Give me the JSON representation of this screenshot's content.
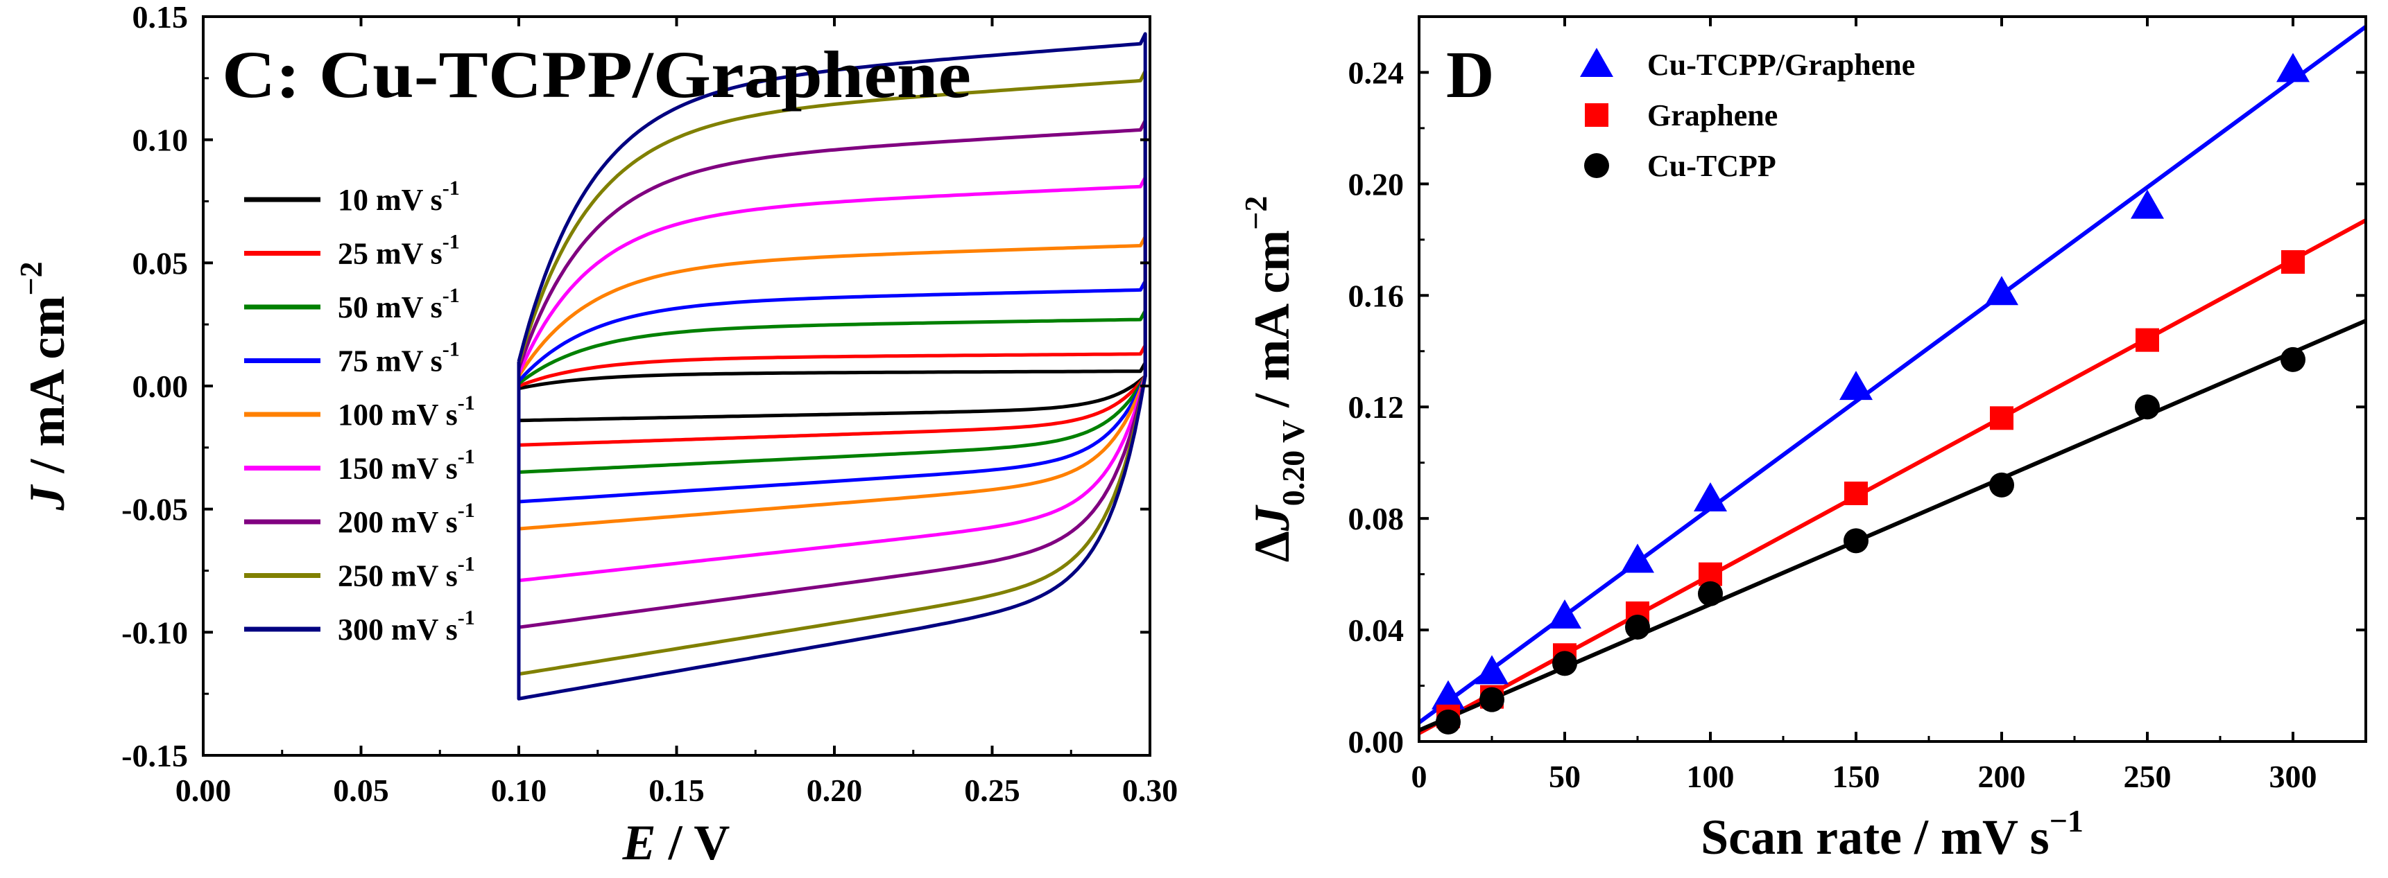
{
  "figure": "Cyclic voltammograms and capacitive current vs scan rate",
  "chart_data": [
    {
      "id": "C",
      "type": "line",
      "title": "C: Cu-TCPP/Graphene",
      "xlabel_italic": "E",
      "xlabel_rest": " / V",
      "ylabel_italic": "J",
      "ylabel_rest": " / mA cm",
      "ylabel_sup": "−2",
      "xlim": [
        0.0,
        0.3
      ],
      "ylim": [
        -0.15,
        0.15
      ],
      "xticks": [
        0.0,
        0.05,
        0.1,
        0.15,
        0.2,
        0.25,
        0.3
      ],
      "xtick_labels": [
        "0.00",
        "0.05",
        "0.10",
        "0.15",
        "0.20",
        "0.25",
        "0.30"
      ],
      "yticks": [
        0.15,
        0.1,
        0.05,
        0.0,
        -0.05,
        -0.1,
        -0.15
      ],
      "ytick_labels": [
        "0.15",
        "0.10",
        "0.05",
        "0.00",
        "-0.05",
        "-0.10",
        "-0.15"
      ],
      "legend_position": "left-middle",
      "unit_text": " mV s",
      "unit_sup": "-1",
      "series": [
        {
          "name": "10 mV s-1",
          "scan_rate": 10,
          "color": "#000000",
          "anodic_start": -0.001,
          "anodic_end": 0.006,
          "cathodic_end": -0.014
        },
        {
          "name": "25 mV s-1",
          "scan_rate": 25,
          "color": "#ff0000",
          "anodic_start": 0.0,
          "anodic_end": 0.013,
          "cathodic_end": -0.024
        },
        {
          "name": "50 mV s-1",
          "scan_rate": 50,
          "color": "#008000",
          "anodic_start": 0.001,
          "anodic_end": 0.027,
          "cathodic_end": -0.035
        },
        {
          "name": "75 mV s-1",
          "scan_rate": 75,
          "color": "#0000ff",
          "anodic_start": 0.002,
          "anodic_end": 0.039,
          "cathodic_end": -0.047
        },
        {
          "name": "100 mV s-1",
          "scan_rate": 100,
          "color": "#ff8000",
          "anodic_start": 0.004,
          "anodic_end": 0.057,
          "cathodic_end": -0.058
        },
        {
          "name": "150 mV s-1",
          "scan_rate": 150,
          "color": "#ff00ff",
          "anodic_start": 0.005,
          "anodic_end": 0.081,
          "cathodic_end": -0.079
        },
        {
          "name": "200 mV s-1",
          "scan_rate": 200,
          "color": "#800080",
          "anodic_start": 0.007,
          "anodic_end": 0.104,
          "cathodic_end": -0.098
        },
        {
          "name": "250 mV s-1",
          "scan_rate": 250,
          "color": "#808000",
          "anodic_start": 0.009,
          "anodic_end": 0.124,
          "cathodic_end": -0.117
        },
        {
          "name": "300 mV s-1",
          "scan_rate": 300,
          "color": "#000080",
          "anodic_start": 0.01,
          "anodic_end": 0.139,
          "cathodic_end": -0.127
        }
      ]
    },
    {
      "id": "D",
      "type": "scatter",
      "title": "D",
      "xlabel": "Scan rate / mV s",
      "xlabel_sup": "−1",
      "ylabel_pre": "Δ",
      "ylabel_italic": "J",
      "ylabel_sub": "0.20 V",
      "ylabel_rest": " / mA cm",
      "ylabel_sup": "−2",
      "xlim": [
        0,
        325
      ],
      "ylim": [
        0.0,
        0.26
      ],
      "xticks": [
        0,
        50,
        100,
        150,
        200,
        250,
        300
      ],
      "xtick_labels": [
        "0",
        "50",
        "100",
        "150",
        "200",
        "250",
        "300"
      ],
      "yticks": [
        0.0,
        0.04,
        0.08,
        0.12,
        0.16,
        0.2,
        0.24
      ],
      "ytick_labels": [
        "0.00",
        "0.04",
        "0.08",
        "0.12",
        "0.16",
        "0.20",
        "0.24"
      ],
      "legend_position": "top-left",
      "x": [
        10,
        25,
        50,
        75,
        100,
        150,
        200,
        250,
        300
      ],
      "series": [
        {
          "name": "Cu-TCPP/Graphene",
          "color": "#0000ff",
          "marker": "triangle",
          "values": [
            0.016,
            0.025,
            0.045,
            0.065,
            0.087,
            0.127,
            0.161,
            0.192,
            0.241
          ],
          "fit": {
            "intercept": 0.0068,
            "slope": 0.000768
          }
        },
        {
          "name": "Graphene",
          "color": "#ff0000",
          "marker": "square",
          "values": [
            0.009,
            0.016,
            0.031,
            0.046,
            0.06,
            0.089,
            0.116,
            0.144,
            0.172
          ],
          "fit": {
            "intercept": 0.003,
            "slope": 0.000566
          }
        },
        {
          "name": "Cu-TCPP",
          "color": "#000000",
          "marker": "circle",
          "values": [
            0.007,
            0.015,
            0.028,
            0.041,
            0.053,
            0.072,
            0.092,
            0.12,
            0.137
          ],
          "fit": {
            "intercept": 0.004,
            "slope": 0.000452
          }
        }
      ]
    }
  ]
}
